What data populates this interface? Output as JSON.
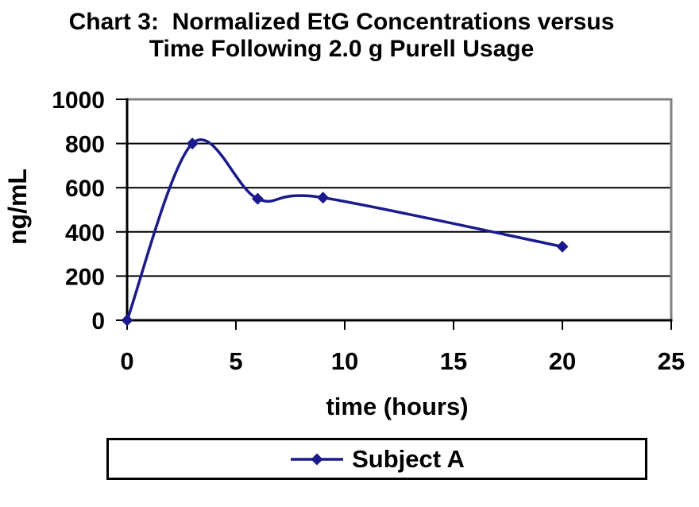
{
  "title": {
    "line1": "Chart 3:  Normalized EtG Concentrations versus",
    "line2": "Time Following 2.0 g Purell Usage"
  },
  "chart_data": {
    "type": "line",
    "title": "Chart 3: Normalized EtG Concentrations versus Time Following 2.0 g Purell Usage",
    "xlabel": "time (hours)",
    "ylabel": "ng/mL",
    "xlim": [
      0,
      25
    ],
    "ylim": [
      0,
      1000
    ],
    "x_ticks": [
      0,
      5,
      10,
      15,
      20,
      25
    ],
    "y_ticks": [
      0,
      200,
      400,
      600,
      800,
      1000
    ],
    "grid": true,
    "smoothed_line": true,
    "legend_position": "bottom",
    "series": [
      {
        "name": "Subject A",
        "marker": "diamond",
        "color": "#1A1A8C",
        "x": [
          0,
          3,
          6,
          9,
          20
        ],
        "values": [
          0,
          800,
          550,
          555,
          333
        ]
      }
    ]
  },
  "colors": {
    "background": "#FFFFFF",
    "text": "#000000",
    "axis": "#000000",
    "gridline": "#000000",
    "plot_border": "#808080",
    "series": "#1A1A8C"
  }
}
